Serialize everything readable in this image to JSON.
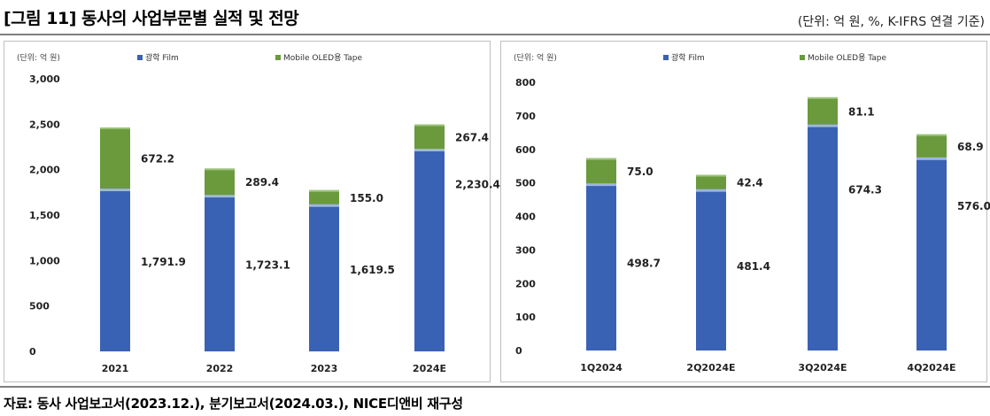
{
  "header": {
    "title": "[그림 11] 동사의 사업부문별 실적 및 전망",
    "unit": "(단위: 억 원, %, K-IFRS 연결 기준)"
  },
  "footer": {
    "source": "자료: 동사 사업보고서(2023.12.), 분기보고서(2024.03.), NICE디앤비 재구성"
  },
  "colors": {
    "film": "#3a62b4",
    "tape": "#6a9a3c"
  },
  "chart_data": [
    {
      "type": "bar",
      "stacked": true,
      "unit_label": "(단위: 억 원)",
      "categories": [
        "2021",
        "2022",
        "2023",
        "2024E"
      ],
      "series": [
        {
          "name": "광학 Film",
          "values": [
            1791.9,
            1723.1,
            1619.5,
            2230.4
          ],
          "labels": [
            "1,791.9",
            "1,723.1",
            "1,619.5",
            "2,230.4"
          ]
        },
        {
          "name": "Mobile OLED용 Tape",
          "values": [
            672.2,
            289.4,
            155.0,
            267.4
          ],
          "labels": [
            "672.2",
            "289.4",
            "155.0",
            "267.4"
          ]
        }
      ],
      "ylim": [
        0,
        3000
      ],
      "yticks": [
        0,
        500,
        1000,
        1500,
        2000,
        2500,
        3000
      ],
      "ytick_labels": [
        "0",
        "500",
        "1,000",
        "1,500",
        "2,000",
        "2,500",
        "3,000"
      ],
      "grid": false,
      "legend": "top"
    },
    {
      "type": "bar",
      "stacked": true,
      "unit_label": "(단위: 억 원)",
      "categories": [
        "1Q2024",
        "2Q2024E",
        "3Q2024E",
        "4Q2024E"
      ],
      "series": [
        {
          "name": "광학 Film",
          "values": [
            498.7,
            481.4,
            674.3,
            576.0
          ],
          "labels": [
            "498.7",
            "481.4",
            "674.3",
            "576.0"
          ]
        },
        {
          "name": "Mobile OLED용 Tape",
          "values": [
            75.0,
            42.4,
            81.1,
            68.9
          ],
          "labels": [
            "75.0",
            "42.4",
            "81.1",
            "68.9"
          ]
        }
      ],
      "ylim": [
        0,
        800
      ],
      "yticks": [
        0,
        100,
        200,
        300,
        400,
        500,
        600,
        700,
        800
      ],
      "ytick_labels": [
        "0",
        "100",
        "200",
        "300",
        "400",
        "500",
        "600",
        "700",
        "800"
      ],
      "grid": false,
      "legend": "top"
    }
  ]
}
